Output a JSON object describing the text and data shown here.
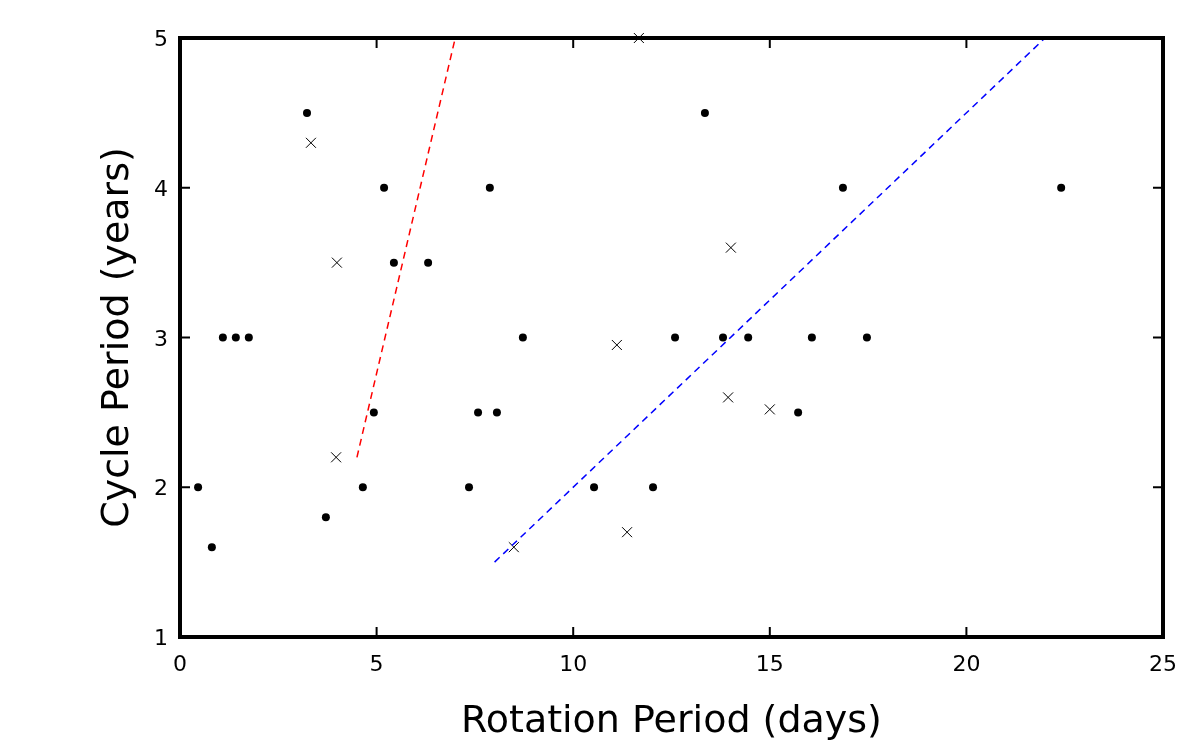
{
  "chart_data": {
    "type": "scatter",
    "xlabel": "Rotation Period (days)",
    "ylabel": "Cycle Period (years)",
    "xlim": [
      0,
      25
    ],
    "ylim": [
      1,
      5
    ],
    "xticks": [
      0,
      5,
      10,
      15,
      20,
      25
    ],
    "yticks": [
      1,
      2,
      3,
      4,
      5
    ],
    "series": [
      {
        "type": "scatter",
        "color": "#000000",
        "marker": "circle",
        "x": [
          0.46,
          0.81,
          1.09,
          1.42,
          1.75,
          3.23,
          3.71,
          4.65,
          4.93,
          5.19,
          5.44,
          6.31,
          7.35,
          7.58,
          7.88,
          8.06,
          8.72,
          10.53,
          12.03,
          12.59,
          13.35,
          13.81,
          14.45,
          15.72,
          16.07,
          16.86,
          17.47,
          22.41
        ],
        "values": [
          2.0,
          1.6,
          3.0,
          3.0,
          3.0,
          4.5,
          1.8,
          2.0,
          2.5,
          4.0,
          3.5,
          3.5,
          2.0,
          2.5,
          4.0,
          2.5,
          3.0,
          2.0,
          2.0,
          3.0,
          4.5,
          3.0,
          3.0,
          2.5,
          3.0,
          4.0,
          3.0,
          4.0
        ]
      },
      {
        "type": "scatter",
        "color": "#000000",
        "marker": "cross",
        "x": [
          3.33,
          3.99,
          3.97,
          8.49,
          11.11,
          11.37,
          11.67,
          14.01,
          13.94,
          15.0
        ],
        "values": [
          4.3,
          3.5,
          2.2,
          1.6,
          2.95,
          1.7,
          5.0,
          3.6,
          2.6,
          2.52
        ]
      },
      {
        "type": "line",
        "color": "#ff0000",
        "marker": "none",
        "line_style": "dashed",
        "x": [
          4.5,
          7.0
        ],
        "values": [
          2.2,
          5.0
        ]
      },
      {
        "type": "line",
        "color": "#0000ff",
        "marker": "none",
        "line_style": "dashed",
        "x": [
          8.0,
          22.0
        ],
        "values": [
          1.5,
          5.0
        ]
      }
    ]
  }
}
